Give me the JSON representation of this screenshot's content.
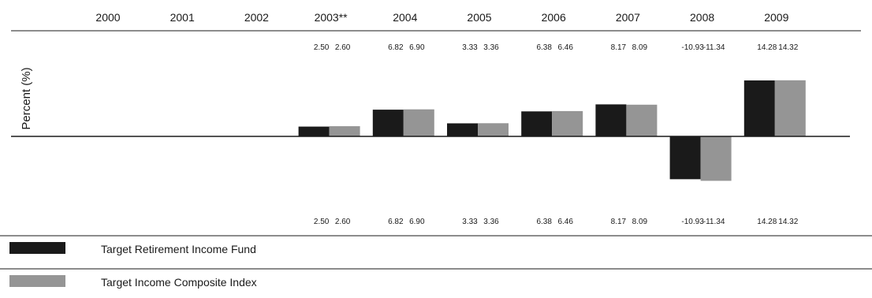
{
  "chart_data": {
    "type": "bar",
    "categories": [
      "2000",
      "2001",
      "2002",
      "2003**",
      "2004",
      "2005",
      "2006",
      "2007",
      "2008",
      "2009"
    ],
    "ylabel": "Percent (%)",
    "xlabel": "",
    "title": "",
    "series": [
      {
        "name": "Target Retirement Income Fund",
        "color": "#1a1a1a",
        "values": [
          null,
          null,
          null,
          2.5,
          6.82,
          3.33,
          6.38,
          8.17,
          -10.93,
          14.28
        ],
        "labels": [
          "",
          "",
          "",
          "2.50",
          "6.82",
          "3.33",
          "6.38",
          "8.17",
          "-10.93",
          "14.28"
        ]
      },
      {
        "name": "Target Income Composite Index",
        "color": "#959595",
        "values": [
          null,
          null,
          null,
          2.6,
          6.9,
          3.36,
          6.46,
          8.09,
          -11.34,
          14.32
        ],
        "labels": [
          "",
          "",
          "",
          "2.60",
          "6.90",
          "3.36",
          "6.46",
          "8.09",
          "-11.34",
          "14.32"
        ]
      }
    ],
    "data_labels_position": "top-and-bottom",
    "legend_position": "bottom-left",
    "grid": false
  }
}
